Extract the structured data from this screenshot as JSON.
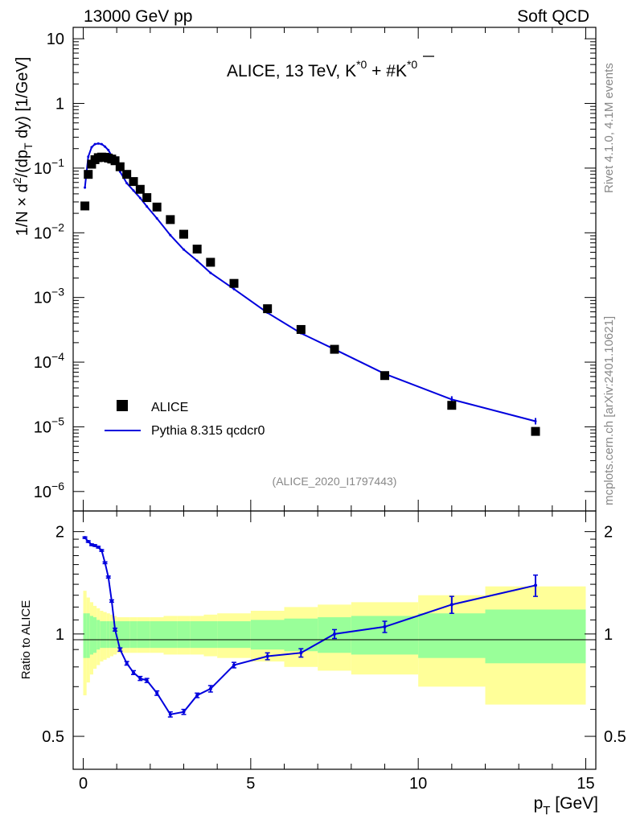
{
  "header": {
    "left": "13000 GeV pp",
    "right": "Soft QCD"
  },
  "side_labels": {
    "rivet": "Rivet 4.1.0,  4.1M events",
    "mcplots": "mcplots.cern.ch [arXiv:2401.10621]"
  },
  "plot_title": {
    "main": "ALICE, 13 TeV, K",
    "sup1": "*0",
    "mid": " + #",
    "kbar": "K",
    "sup2": "*0"
  },
  "analysis_id": "(ALICE_2020_I1797443)",
  "axes": {
    "ylabel_top": {
      "a": "1/N × d",
      "b": "2",
      "c": "/(dp",
      "d": "T",
      "e": " dy) [1/GeV]"
    },
    "ylabel_bottom": "Ratio to ALICE",
    "xlabel": {
      "p": "p",
      "sub": "T",
      "rest": " [GeV]"
    },
    "x_ticks": [
      "0",
      "5",
      "10",
      "15"
    ],
    "y_ticks_top": [
      {
        "base": "10",
        "exp": "",
        "v": 10
      },
      {
        "base": "1",
        "exp": "",
        "v": 1
      },
      {
        "base": "10",
        "exp": "−1",
        "v": 0.1
      },
      {
        "base": "10",
        "exp": "−2",
        "v": 0.01
      },
      {
        "base": "10",
        "exp": "−3",
        "v": 0.001
      },
      {
        "base": "10",
        "exp": "−4",
        "v": 0.0001
      },
      {
        "base": "10",
        "exp": "−5",
        "v": 1e-05
      },
      {
        "base": "10",
        "exp": "−6",
        "v": 1e-06
      }
    ],
    "y_ticks_bottom": [
      "2",
      "1",
      "0.5"
    ]
  },
  "legend": {
    "data": "ALICE",
    "mc": "Pythia 8.315 qcdcr0"
  },
  "colors": {
    "mc": "#0000dd",
    "band_inner": "#99ff99",
    "band_outer": "#ffff99",
    "data": "#000000"
  },
  "chart_data": {
    "type": "scatter",
    "x_label": "p_T [GeV]",
    "xlim": [
      -0.3,
      15.3
    ],
    "ylim_top": [
      5e-07,
      15
    ],
    "ylim_bottom": [
      0.4,
      2.3
    ],
    "bins": [
      {
        "lo": 0.0,
        "hi": 0.1
      },
      {
        "lo": 0.1,
        "hi": 0.2
      },
      {
        "lo": 0.2,
        "hi": 0.3
      },
      {
        "lo": 0.3,
        "hi": 0.4
      },
      {
        "lo": 0.4,
        "hi": 0.5
      },
      {
        "lo": 0.5,
        "hi": 0.6
      },
      {
        "lo": 0.6,
        "hi": 0.7
      },
      {
        "lo": 0.7,
        "hi": 0.8
      },
      {
        "lo": 0.8,
        "hi": 0.9
      },
      {
        "lo": 0.9,
        "hi": 1.0
      },
      {
        "lo": 1.0,
        "hi": 1.2
      },
      {
        "lo": 1.2,
        "hi": 1.4
      },
      {
        "lo": 1.4,
        "hi": 1.6
      },
      {
        "lo": 1.6,
        "hi": 1.8
      },
      {
        "lo": 1.8,
        "hi": 2.0
      },
      {
        "lo": 2.0,
        "hi": 2.4
      },
      {
        "lo": 2.4,
        "hi": 2.8
      },
      {
        "lo": 2.8,
        "hi": 3.2
      },
      {
        "lo": 3.2,
        "hi": 3.6
      },
      {
        "lo": 3.6,
        "hi": 4.0
      },
      {
        "lo": 4.0,
        "hi": 5.0
      },
      {
        "lo": 5.0,
        "hi": 6.0
      },
      {
        "lo": 6.0,
        "hi": 7.0
      },
      {
        "lo": 7.0,
        "hi": 8.0
      },
      {
        "lo": 8.0,
        "hi": 10.0
      },
      {
        "lo": 10.0,
        "hi": 12.0
      },
      {
        "lo": 12.0,
        "hi": 15.0
      }
    ],
    "x": [
      0.05,
      0.15,
      0.25,
      0.35,
      0.45,
      0.55,
      0.65,
      0.75,
      0.85,
      0.95,
      1.1,
      1.3,
      1.5,
      1.7,
      1.9,
      2.2,
      2.6,
      3.0,
      3.4,
      3.8,
      4.5,
      5.5,
      6.5,
      7.5,
      9.0,
      11.0,
      13.5
    ],
    "data_y": [
      0.026,
      0.08,
      0.115,
      0.135,
      0.145,
      0.148,
      0.147,
      0.143,
      0.138,
      0.13,
      0.105,
      0.08,
      0.062,
      0.047,
      0.035,
      0.025,
      0.016,
      0.0095,
      0.0056,
      0.0035,
      0.00165,
      0.00067,
      0.00032,
      0.000158,
      6.2e-05,
      2.15e-05,
      8.5e-06
    ],
    "mc_y": [
      0.05,
      0.15,
      0.21,
      0.235,
      0.24,
      0.235,
      0.215,
      0.19,
      0.155,
      0.127,
      0.088,
      0.0585,
      0.045,
      0.0345,
      0.0255,
      0.0167,
      0.0092,
      0.0055,
      0.0037,
      0.0024,
      0.00135,
      0.00058,
      0.00028,
      0.000158,
      6.6e-05,
      2.65e-05,
      1.22e-05
    ],
    "ratio": [
      1.92,
      1.87,
      1.83,
      1.82,
      1.8,
      1.76,
      1.62,
      1.47,
      1.25,
      1.03,
      0.9,
      0.82,
      0.77,
      0.74,
      0.73,
      0.67,
      0.58,
      0.59,
      0.66,
      0.69,
      0.81,
      0.86,
      0.88,
      1.0,
      1.05,
      1.22,
      1.39
    ],
    "ratio_err": [
      0.01,
      0.01,
      0.01,
      0.01,
      0.01,
      0.01,
      0.01,
      0.01,
      0.01,
      0.01,
      0.01,
      0.01,
      0.01,
      0.01,
      0.01,
      0.01,
      0.01,
      0.01,
      0.01,
      0.015,
      0.015,
      0.02,
      0.025,
      0.03,
      0.04,
      0.07,
      0.1
    ],
    "band_inner": [
      0.15,
      0.15,
      0.13,
      0.12,
      0.1,
      0.09,
      0.09,
      0.09,
      0.09,
      0.09,
      0.09,
      0.09,
      0.09,
      0.09,
      0.09,
      0.09,
      0.09,
      0.09,
      0.09,
      0.09,
      0.09,
      0.1,
      0.11,
      0.12,
      0.13,
      0.15,
      0.18
    ],
    "band_outer": [
      0.34,
      0.28,
      0.24,
      0.21,
      0.19,
      0.17,
      0.16,
      0.15,
      0.14,
      0.13,
      0.12,
      0.12,
      0.12,
      0.12,
      0.12,
      0.12,
      0.13,
      0.13,
      0.13,
      0.14,
      0.15,
      0.17,
      0.2,
      0.22,
      0.24,
      0.3,
      0.38
    ]
  }
}
